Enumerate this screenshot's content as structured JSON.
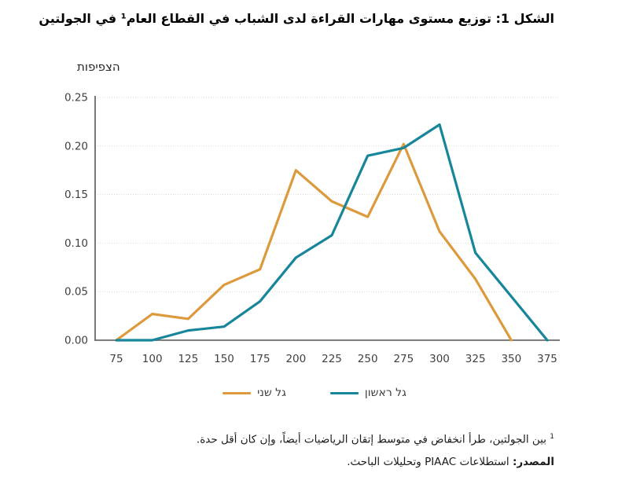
{
  "title": "الشكل 1: توزيع مستوى مهارات القراءة لدى الشباب في القطاع العام¹ في الجولتين",
  "y_axis_title": "הצפיפות",
  "legend": {
    "items": [
      {
        "label": "גל שני",
        "color": "#DD9A3D"
      },
      {
        "label": "גל ראשון",
        "color": "#17869B"
      }
    ]
  },
  "footnote": {
    "marker": "1",
    "text": " بين الجولتين، طرأ انخفاض في متوسط إتقان الرياضيات أيضاً، وإن كان أقل حدة."
  },
  "source": {
    "label": "المصدر:",
    "text": " استطلاعات PIAAC وتحليلات الباحث."
  },
  "colors": {
    "orange": "#DD9A3D",
    "teal": "#17869B",
    "axis": "#6a6a6a",
    "grid": "#d9d9d9",
    "tick_text": "#404040"
  },
  "chart_data": {
    "type": "line",
    "title": "الشكل 1: توزيع مستوى مهارات القراءة لدى الشباب في القطاع العام¹ في الجولتين",
    "xlabel": "",
    "ylabel": "הצפיפות",
    "x": [
      75,
      100,
      125,
      150,
      175,
      200,
      225,
      250,
      275,
      300,
      325,
      350,
      375
    ],
    "x_tick_labels": [
      "75",
      "100",
      "125",
      "150",
      "175",
      "200",
      "225",
      "250",
      "275",
      "300",
      "325",
      "350",
      "375"
    ],
    "yticks": [
      0,
      0.05,
      0.1,
      0.15,
      0.2,
      0.25
    ],
    "y_tick_labels": [
      "0.00",
      "0.05",
      "0.10",
      "0.15",
      "0.20",
      "0.25"
    ],
    "ylim": [
      0,
      0.25
    ],
    "grid": true,
    "legend_position": "bottom",
    "series": [
      {
        "name": "גל שני",
        "color": "#DD9A3D",
        "values": [
          0,
          0.027,
          0.022,
          0.057,
          0.073,
          0.175,
          0.143,
          0.127,
          0.202,
          0.112,
          0.063,
          0,
          null
        ]
      },
      {
        "name": "גל ראשון",
        "color": "#17869B",
        "values": [
          0,
          0,
          0.01,
          0.014,
          0.04,
          0.085,
          0.108,
          0.19,
          0.198,
          0.222,
          0.09,
          0.045,
          0
        ]
      }
    ]
  }
}
